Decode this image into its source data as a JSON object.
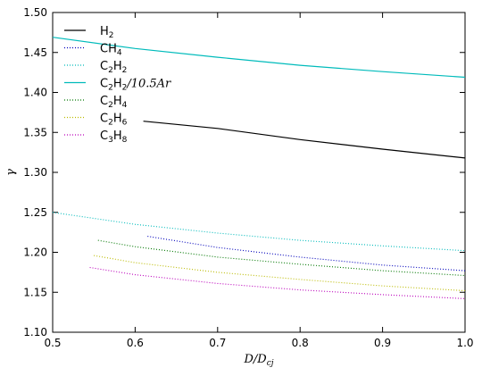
{
  "chart_data": {
    "type": "line",
    "title": "",
    "xlabel": "D/D_cj",
    "ylabel": "γ",
    "xlim": [
      0.5,
      1.0
    ],
    "ylim": [
      1.1,
      1.5
    ],
    "grid": false,
    "legend_position": "top-left",
    "x_ticks": [
      "0.5",
      "0.6",
      "0.7",
      "0.8",
      "0.9",
      "1.0"
    ],
    "y_ticks": [
      "1.10",
      "1.15",
      "1.20",
      "1.25",
      "1.30",
      "1.35",
      "1.40",
      "1.45",
      "1.50"
    ],
    "series": [
      {
        "name": "H2",
        "legend": {
          "base": "H",
          "sub": "2",
          "tail": "",
          "tail_sub": "",
          "suffix": ""
        },
        "color": "#000000",
        "style": "solid",
        "x": [
          0.61,
          0.7,
          0.8,
          0.9,
          1.0
        ],
        "y": [
          1.364,
          1.355,
          1.341,
          1.329,
          1.318
        ]
      },
      {
        "name": "CH4",
        "legend": {
          "base": "CH",
          "sub": "4",
          "tail": "",
          "tail_sub": "",
          "suffix": ""
        },
        "color": "#0000bb",
        "style": "dotted",
        "x": [
          0.615,
          0.7,
          0.8,
          0.9,
          1.0
        ],
        "y": [
          1.22,
          1.206,
          1.194,
          1.184,
          1.177
        ]
      },
      {
        "name": "C2H2",
        "legend": {
          "base": "C",
          "sub": "2",
          "tail": "H",
          "tail_sub": "2",
          "suffix": ""
        },
        "color": "#00bbbb",
        "style": "dotted",
        "x": [
          0.5,
          0.6,
          0.7,
          0.8,
          0.9,
          1.0
        ],
        "y": [
          1.25,
          1.235,
          1.224,
          1.215,
          1.208,
          1.202
        ]
      },
      {
        "name": "C2H2/10.5Ar",
        "legend": {
          "base": "C",
          "sub": "2",
          "tail": "H",
          "tail_sub": "2",
          "suffix": "/10.5Ar"
        },
        "color": "#00bbbb",
        "style": "solid",
        "x": [
          0.5,
          0.6,
          0.7,
          0.8,
          0.9,
          1.0
        ],
        "y": [
          1.469,
          1.455,
          1.444,
          1.434,
          1.426,
          1.419
        ]
      },
      {
        "name": "C2H4",
        "legend": {
          "base": "C",
          "sub": "2",
          "tail": "H",
          "tail_sub": "4",
          "suffix": ""
        },
        "color": "#007700",
        "style": "dotted",
        "x": [
          0.555,
          0.6,
          0.7,
          0.8,
          0.9,
          1.0
        ],
        "y": [
          1.215,
          1.207,
          1.194,
          1.185,
          1.177,
          1.171
        ]
      },
      {
        "name": "C2H6",
        "legend": {
          "base": "C",
          "sub": "2",
          "tail": "H",
          "tail_sub": "6",
          "suffix": ""
        },
        "color": "#bbbb00",
        "style": "dotted",
        "x": [
          0.55,
          0.6,
          0.7,
          0.8,
          0.9,
          1.0
        ],
        "y": [
          1.196,
          1.187,
          1.175,
          1.166,
          1.158,
          1.152
        ]
      },
      {
        "name": "C3H8",
        "legend": {
          "base": "C",
          "sub": "3",
          "tail": "H",
          "tail_sub": "8",
          "suffix": ""
        },
        "color": "#bb00bb",
        "style": "dotted",
        "x": [
          0.545,
          0.6,
          0.7,
          0.8,
          0.9,
          1.0
        ],
        "y": [
          1.181,
          1.172,
          1.161,
          1.153,
          1.147,
          1.142
        ]
      }
    ]
  }
}
